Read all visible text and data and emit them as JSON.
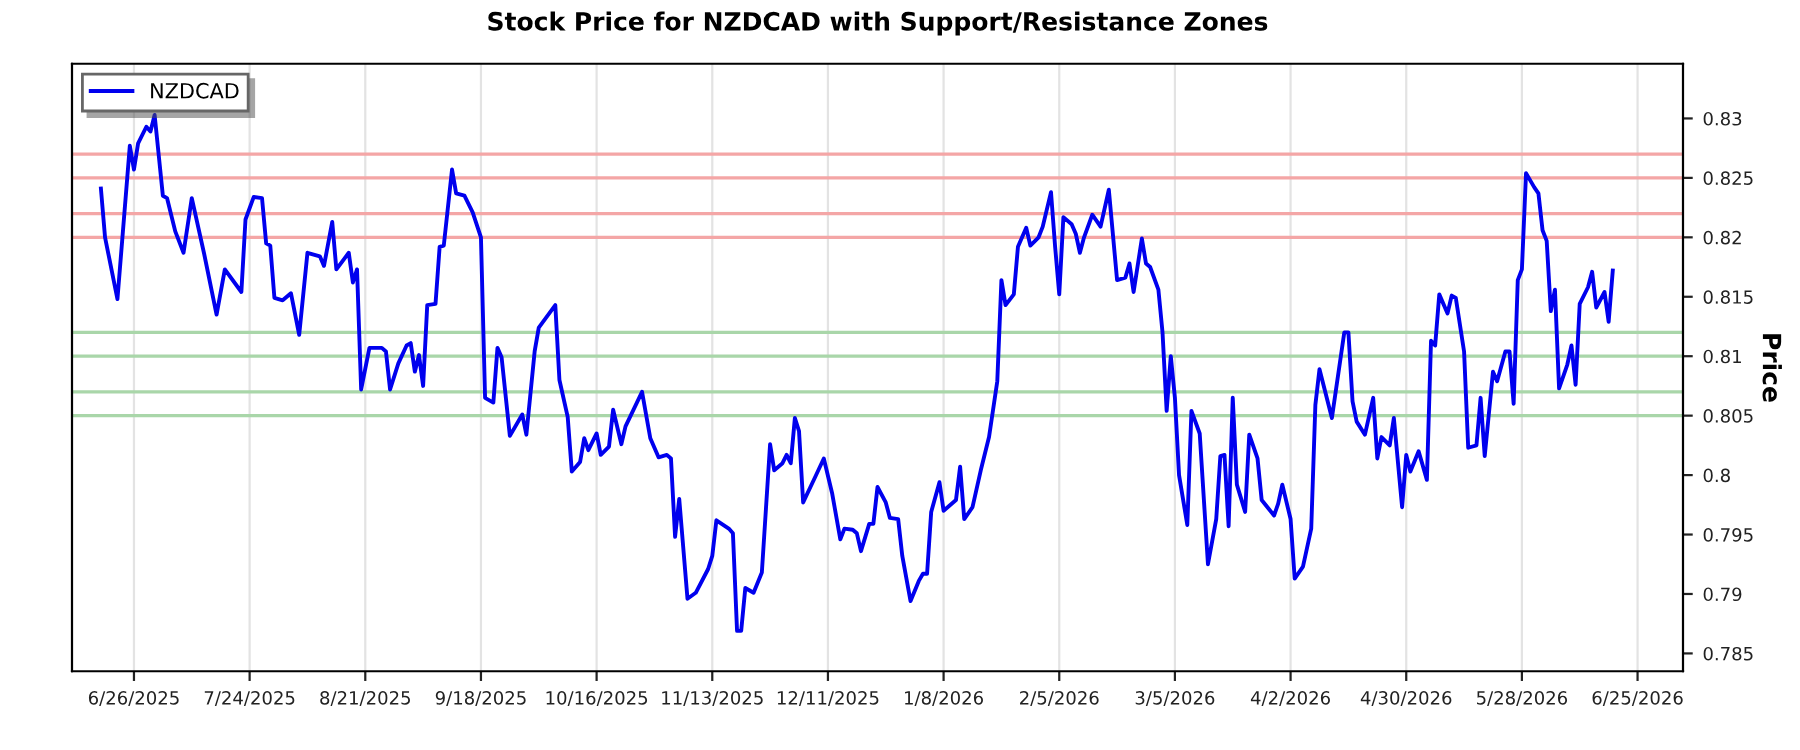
{
  "chart_data": {
    "type": "line",
    "title": "Stock Price for NZDCAD with Support/Resistance Zones",
    "ylabel": "Price",
    "x": [
      "2025-06-18",
      "2025-06-19",
      "2025-06-22",
      "2025-06-25",
      "2025-06-26",
      "2025-06-27",
      "2025-06-29",
      "2025-06-30",
      "2025-07-01",
      "2025-07-03",
      "2025-07-04",
      "2025-07-06",
      "2025-07-08",
      "2025-07-10",
      "2025-07-13",
      "2025-07-16",
      "2025-07-18",
      "2025-07-22",
      "2025-07-23",
      "2025-07-25",
      "2025-07-27",
      "2025-07-28",
      "2025-07-29",
      "2025-07-30",
      "2025-08-01",
      "2025-08-03",
      "2025-08-05",
      "2025-08-07",
      "2025-08-10",
      "2025-08-11",
      "2025-08-13",
      "2025-08-14",
      "2025-08-17",
      "2025-08-18",
      "2025-08-19",
      "2025-08-20",
      "2025-08-22",
      "2025-08-25",
      "2025-08-26",
      "2025-08-27",
      "2025-08-29",
      "2025-08-31",
      "2025-09-01",
      "2025-09-02",
      "2025-09-03",
      "2025-09-04",
      "2025-09-05",
      "2025-09-07",
      "2025-09-08",
      "2025-09-09",
      "2025-09-11",
      "2025-09-12",
      "2025-09-14",
      "2025-09-16",
      "2025-09-18",
      "2025-09-19",
      "2025-09-21",
      "2025-09-22",
      "2025-09-23",
      "2025-09-25",
      "2025-09-28",
      "2025-09-29",
      "2025-10-01",
      "2025-10-02",
      "2025-10-06",
      "2025-10-07",
      "2025-10-09",
      "2025-10-10",
      "2025-10-12",
      "2025-10-13",
      "2025-10-14",
      "2025-10-16",
      "2025-10-17",
      "2025-10-19",
      "2025-10-20",
      "2025-10-22",
      "2025-10-23",
      "2025-10-27",
      "2025-10-29",
      "2025-10-31",
      "2025-11-02",
      "2025-11-03",
      "2025-11-04",
      "2025-11-05",
      "2025-11-07",
      "2025-11-09",
      "2025-11-12",
      "2025-11-13",
      "2025-11-14",
      "2025-11-17",
      "2025-11-18",
      "2025-11-19",
      "2025-11-20",
      "2025-11-21",
      "2025-11-23",
      "2025-11-25",
      "2025-11-27",
      "2025-11-28",
      "2025-11-30",
      "2025-12-01",
      "2025-12-02",
      "2025-12-03",
      "2025-12-04",
      "2025-12-05",
      "2025-12-08",
      "2025-12-10",
      "2025-12-12",
      "2025-12-14",
      "2025-12-15",
      "2025-12-17",
      "2025-12-18",
      "2025-12-19",
      "2025-12-21",
      "2025-12-22",
      "2025-12-23",
      "2025-12-25",
      "2025-12-26",
      "2025-12-28",
      "2025-12-29",
      "2025-12-31",
      "2026-01-02",
      "2026-01-03",
      "2026-01-04",
      "2026-01-05",
      "2026-01-07",
      "2026-01-08",
      "2026-01-11",
      "2026-01-12",
      "2026-01-13",
      "2026-01-15",
      "2026-01-17",
      "2026-01-19",
      "2026-01-21",
      "2026-01-22",
      "2026-01-23",
      "2026-01-25",
      "2026-01-26",
      "2026-01-28",
      "2026-01-29",
      "2026-01-31",
      "2026-02-01",
      "2026-02-03",
      "2026-02-04",
      "2026-02-05",
      "2026-02-06",
      "2026-02-08",
      "2026-02-09",
      "2026-02-10",
      "2026-02-11",
      "2026-02-13",
      "2026-02-15",
      "2026-02-17",
      "2026-02-19",
      "2026-02-21",
      "2026-02-22",
      "2026-02-23",
      "2026-02-25",
      "2026-02-26",
      "2026-02-27",
      "2026-03-01",
      "2026-03-02",
      "2026-03-03",
      "2026-03-04",
      "2026-03-05",
      "2026-03-06",
      "2026-03-08",
      "2026-03-09",
      "2026-03-11",
      "2026-03-13",
      "2026-03-15",
      "2026-03-16",
      "2026-03-17",
      "2026-03-18",
      "2026-03-19",
      "2026-03-20",
      "2026-03-22",
      "2026-03-23",
      "2026-03-25",
      "2026-03-26",
      "2026-03-29",
      "2026-03-30",
      "2026-03-31",
      "2026-04-02",
      "2026-04-03",
      "2026-04-05",
      "2026-04-07",
      "2026-04-08",
      "2026-04-09",
      "2026-04-12",
      "2026-04-15",
      "2026-04-16",
      "2026-04-17",
      "2026-04-18",
      "2026-04-20",
      "2026-04-22",
      "2026-04-23",
      "2026-04-24",
      "2026-04-26",
      "2026-04-27",
      "2026-04-29",
      "2026-04-30",
      "2026-05-01",
      "2026-05-03",
      "2026-05-05",
      "2026-05-06",
      "2026-05-07",
      "2026-05-08",
      "2026-05-10",
      "2026-05-11",
      "2026-05-12",
      "2026-05-14",
      "2026-05-15",
      "2026-05-17",
      "2026-05-18",
      "2026-05-19",
      "2026-05-21",
      "2026-05-22",
      "2026-05-24",
      "2026-05-25",
      "2026-05-26",
      "2026-05-27",
      "2026-05-28",
      "2026-05-29",
      "2026-05-31",
      "2026-06-01",
      "2026-06-02",
      "2026-06-03",
      "2026-06-04",
      "2026-06-05",
      "2026-06-06",
      "2026-06-08",
      "2026-06-09",
      "2026-06-10",
      "2026-06-11",
      "2026-06-13",
      "2026-06-14",
      "2026-06-15",
      "2026-06-17",
      "2026-06-18",
      "2026-06-19"
    ],
    "series": [
      {
        "name": "NZDCAD",
        "color": "#0000ee",
        "values": [
          0.8241,
          0.82,
          0.8148,
          0.8277,
          0.8257,
          0.8279,
          0.8293,
          0.8289,
          0.8303,
          0.8235,
          0.8233,
          0.8205,
          0.8187,
          0.8233,
          0.8186,
          0.8135,
          0.8173,
          0.8154,
          0.8215,
          0.8234,
          0.8233,
          0.8195,
          0.8193,
          0.8149,
          0.8147,
          0.8153,
          0.8118,
          0.8187,
          0.8184,
          0.8176,
          0.8213,
          0.8173,
          0.8187,
          0.8162,
          0.8173,
          0.8072,
          0.8107,
          0.8107,
          0.8104,
          0.8072,
          0.8094,
          0.8109,
          0.8111,
          0.8087,
          0.8101,
          0.8075,
          0.8143,
          0.8144,
          0.8192,
          0.8193,
          0.8257,
          0.8237,
          0.8235,
          0.8221,
          0.82,
          0.8065,
          0.8061,
          0.8107,
          0.8099,
          0.8033,
          0.8051,
          0.8034,
          0.8104,
          0.8124,
          0.8143,
          0.808,
          0.8049,
          0.8003,
          0.8011,
          0.8031,
          0.8021,
          0.8035,
          0.8017,
          0.8024,
          0.8055,
          0.8026,
          0.8041,
          0.807,
          0.8031,
          0.8015,
          0.8017,
          0.8014,
          0.7948,
          0.798,
          0.7896,
          0.7901,
          0.7921,
          0.7932,
          0.7962,
          0.7955,
          0.7951,
          0.7869,
          0.7869,
          0.7905,
          0.7901,
          0.7918,
          0.8026,
          0.8004,
          0.801,
          0.8017,
          0.801,
          0.8048,
          0.8037,
          0.7977,
          0.7999,
          0.8014,
          0.7985,
          0.7946,
          0.7955,
          0.7954,
          0.7951,
          0.7936,
          0.7959,
          0.7959,
          0.799,
          0.7977,
          0.7964,
          0.7963,
          0.7932,
          0.7894,
          0.7911,
          0.7917,
          0.7917,
          0.7969,
          0.7994,
          0.797,
          0.7979,
          0.8007,
          0.7963,
          0.7973,
          0.8004,
          0.8032,
          0.8079,
          0.8164,
          0.8143,
          0.8152,
          0.8192,
          0.8208,
          0.8193,
          0.82,
          0.8209,
          0.8238,
          0.8192,
          0.8152,
          0.8217,
          0.8211,
          0.8203,
          0.8187,
          0.82,
          0.8219,
          0.8209,
          0.824,
          0.8164,
          0.8166,
          0.8178,
          0.8154,
          0.8199,
          0.8178,
          0.8175,
          0.8156,
          0.812,
          0.8054,
          0.81,
          0.8065,
          0.8,
          0.7958,
          0.8054,
          0.8035,
          0.7925,
          0.7963,
          0.8016,
          0.8017,
          0.7957,
          0.8065,
          0.7992,
          0.7969,
          0.8034,
          0.8014,
          0.7979,
          0.7966,
          0.7976,
          0.7992,
          0.7963,
          0.7913,
          0.7923,
          0.7955,
          0.8059,
          0.8089,
          0.8048,
          0.812,
          0.812,
          0.8062,
          0.8045,
          0.8034,
          0.8065,
          0.8014,
          0.8032,
          0.8025,
          0.8048,
          0.7973,
          0.8017,
          0.8003,
          0.802,
          0.7996,
          0.8113,
          0.8109,
          0.8152,
          0.8136,
          0.8151,
          0.8149,
          0.8104,
          0.8023,
          0.8025,
          0.8065,
          0.8016,
          0.8087,
          0.8079,
          0.8104,
          0.8104,
          0.806,
          0.8164,
          0.8173,
          0.8254,
          0.8242,
          0.8237,
          0.8206,
          0.8197,
          0.8138,
          0.8156,
          0.8073,
          0.8093,
          0.8109,
          0.8076,
          0.8144,
          0.8158,
          0.8171,
          0.8141,
          0.8154,
          0.8129,
          0.8172
        ]
      }
    ],
    "xlim": [
      "2025-06-11",
      "2026-07-06"
    ],
    "xticks": [
      {
        "value": "2025-06-26",
        "label": "6/26/2025"
      },
      {
        "value": "2025-07-24",
        "label": "7/24/2025"
      },
      {
        "value": "2025-08-21",
        "label": "8/21/2025"
      },
      {
        "value": "2025-09-18",
        "label": "9/18/2025"
      },
      {
        "value": "2025-10-16",
        "label": "10/16/2025"
      },
      {
        "value": "2025-11-13",
        "label": "11/13/2025"
      },
      {
        "value": "2025-12-11",
        "label": "12/11/2025"
      },
      {
        "value": "2026-01-08",
        "label": "1/8/2026"
      },
      {
        "value": "2026-02-05",
        "label": "2/5/2026"
      },
      {
        "value": "2026-03-05",
        "label": "3/5/2026"
      },
      {
        "value": "2026-04-02",
        "label": "4/2/2026"
      },
      {
        "value": "2026-04-30",
        "label": "4/30/2026"
      },
      {
        "value": "2026-05-28",
        "label": "5/28/2026"
      },
      {
        "value": "2026-06-25",
        "label": "6/25/2026"
      }
    ],
    "ylim": [
      0.7835,
      0.8346
    ],
    "yticks": [
      0.785,
      0.79,
      0.795,
      0.8,
      0.805,
      0.81,
      0.815,
      0.82,
      0.825,
      0.83
    ],
    "ref_lines": [
      {
        "axis": "y",
        "value": 0.827,
        "color": "#f4a6a6"
      },
      {
        "axis": "y",
        "value": 0.825,
        "color": "#f4a6a6"
      },
      {
        "axis": "y",
        "value": 0.822,
        "color": "#f4a6a6"
      },
      {
        "axis": "y",
        "value": 0.82,
        "color": "#f4a6a6"
      },
      {
        "axis": "y",
        "value": 0.812,
        "color": "#a9d6a9"
      },
      {
        "axis": "y",
        "value": 0.81,
        "color": "#a9d6a9"
      },
      {
        "axis": "y",
        "value": 0.807,
        "color": "#a9d6a9"
      },
      {
        "axis": "y",
        "value": 0.805,
        "color": "#a9d6a9"
      }
    ],
    "grid": "x",
    "legend": "top left",
    "line_style": "solid",
    "marker": "none"
  }
}
